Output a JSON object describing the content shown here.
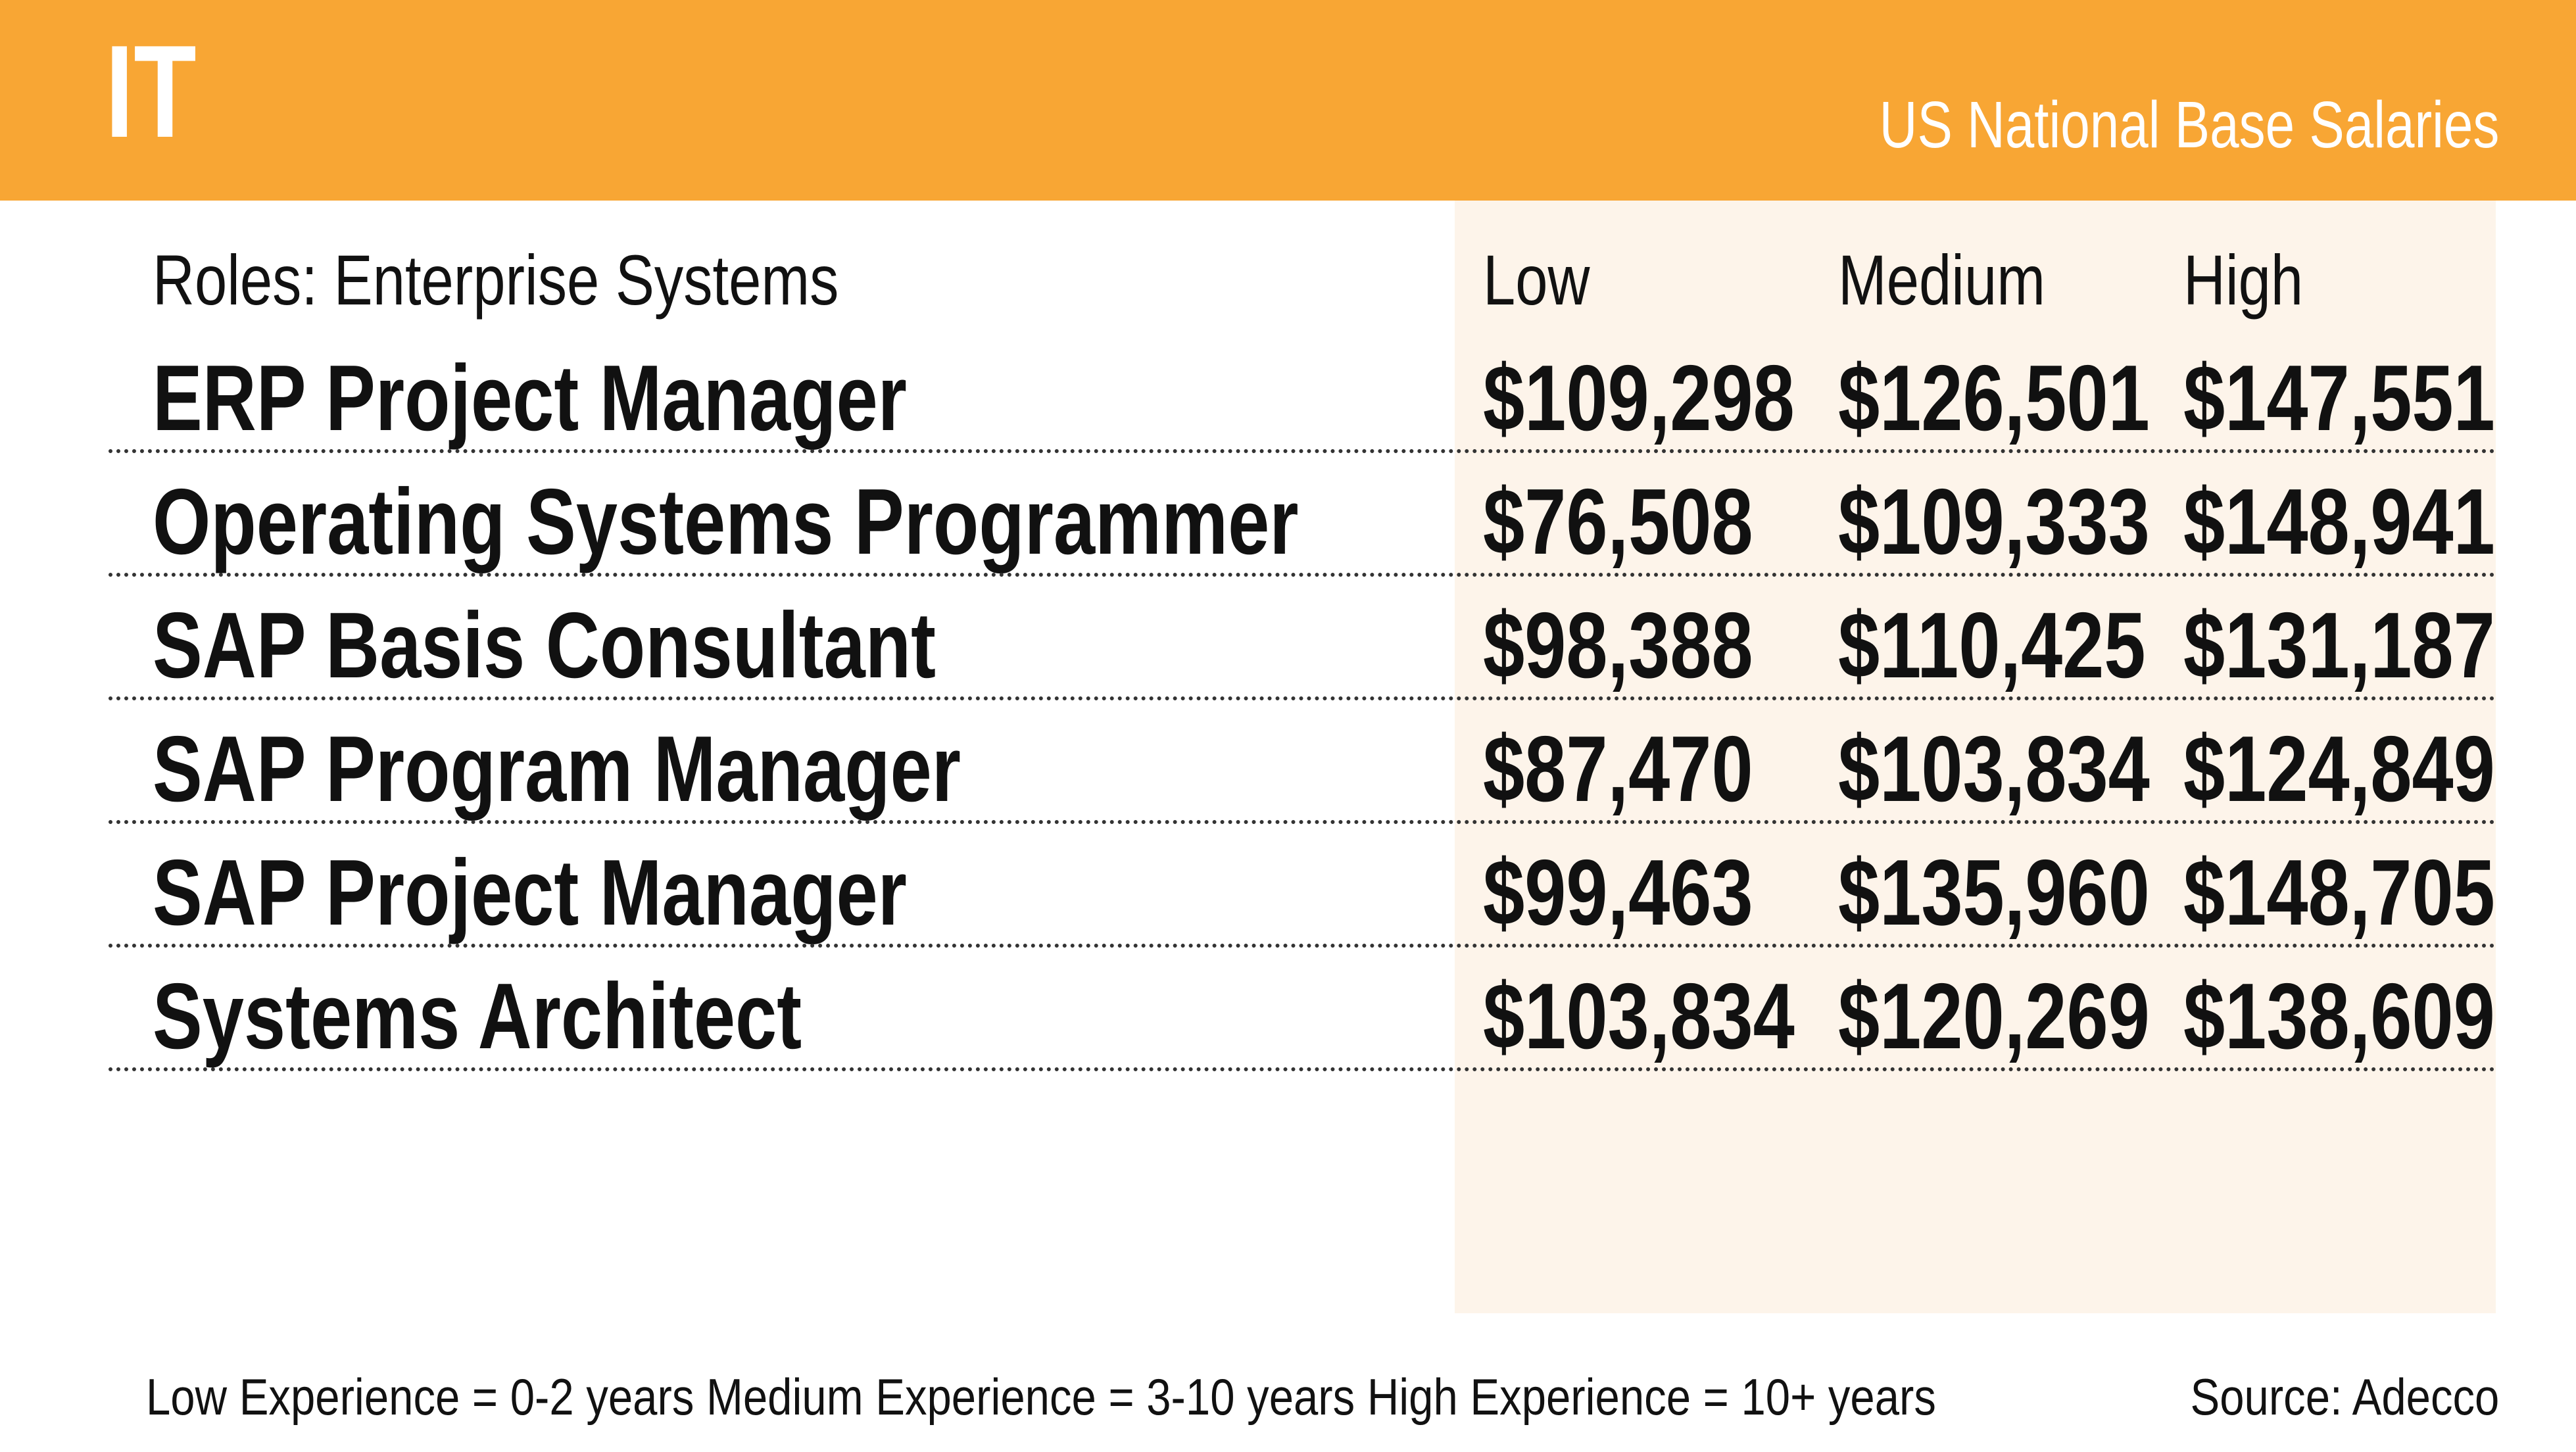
{
  "header": {
    "title": "IT",
    "subtitle": "US National Base Salaries"
  },
  "colors": {
    "accent": "#f8a634",
    "panel": "#fdf4ea",
    "text": "#111111"
  },
  "chart_data": {
    "type": "table",
    "title": "IT",
    "subtitle": "US National Base Salaries",
    "row_header": "Roles: Enterprise Systems",
    "columns": [
      "Low",
      "Medium",
      "High"
    ],
    "rows": [
      {
        "role": "ERP Project Manager",
        "values": [
          "$109,298",
          "$126,501",
          "$147,551"
        ]
      },
      {
        "role": "Operating Systems Programmer",
        "values": [
          "$76,508",
          "$109,333",
          "$148,941"
        ]
      },
      {
        "role": "SAP Basis Consultant",
        "values": [
          "$98,388",
          "$110,425",
          "$131,187"
        ]
      },
      {
        "role": "SAP Program Manager",
        "values": [
          "$87,470",
          "$103,834",
          "$124,849"
        ]
      },
      {
        "role": "SAP Project Manager",
        "values": [
          "$99,463",
          "$135,960",
          "$148,705"
        ]
      },
      {
        "role": "Systems Architect",
        "values": [
          "$103,834",
          "$120,269",
          "$138,609"
        ]
      }
    ]
  },
  "footer": {
    "note": "Low Experience = 0-2 years Medium Experience = 3-10 years High Experience = 10+ years",
    "source": "Source: Adecco"
  }
}
